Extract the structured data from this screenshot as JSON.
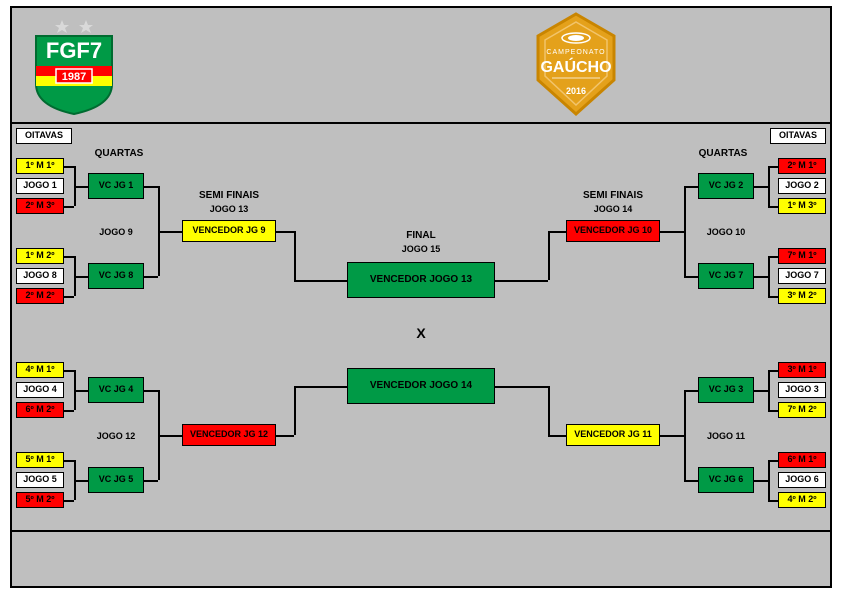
{
  "colors": {
    "bg": "#bfbfbf",
    "yellow": "#ffff00",
    "red": "#ff0000",
    "green": "#009a46",
    "white": "#ffffff",
    "black": "#000000",
    "redText": "#000000",
    "greenBorder": "#00b050"
  },
  "logo": {
    "text_top": "FGF7",
    "year": "1987",
    "star_color": "#d9d9d9"
  },
  "badge": {
    "line1": "CAMPEONATO",
    "line2": "GAÚCHO",
    "year": "2016",
    "fill": "#e4a11b",
    "border": "#c98500"
  },
  "columns": {
    "left_title": "OITAVAS",
    "right_title": "OITAVAS",
    "quartas": "QUARTAS",
    "semi": "SEMI FINAIS",
    "final": "FINAL"
  },
  "oitavasLeft": [
    {
      "seedTop": "1º M 1º",
      "game": "JOGO 1",
      "seedBot": "2º M 3º",
      "topColor": "yellow",
      "botColor": "red"
    },
    {
      "seedTop": "1º M 2º",
      "game": "JOGO 8",
      "seedBot": "2º M 2º",
      "topColor": "yellow",
      "botColor": "red"
    },
    {
      "seedTop": "4º M 1º",
      "game": "JOGO 4",
      "seedBot": "6º M 2º",
      "topColor": "yellow",
      "botColor": "red"
    },
    {
      "seedTop": "5º M 1º",
      "game": "JOGO 5",
      "seedBot": "5º M 2º",
      "topColor": "yellow",
      "botColor": "red"
    }
  ],
  "oitavasRight": [
    {
      "seedTop": "2º M 1º",
      "game": "JOGO 2",
      "seedBot": "1º M 3º",
      "topColor": "red",
      "botColor": "yellow"
    },
    {
      "seedTop": "7º M 1º",
      "game": "JOGO 7",
      "seedBot": "3º M 2º",
      "topColor": "red",
      "botColor": "yellow"
    },
    {
      "seedTop": "3º M 1º",
      "game": "JOGO 3",
      "seedBot": "7º M 2º",
      "topColor": "red",
      "botColor": "yellow"
    },
    {
      "seedTop": "6º M 1º",
      "game": "JOGO 6",
      "seedBot": "4º M 2º",
      "topColor": "red",
      "botColor": "yellow"
    }
  ],
  "quartasLeft": [
    {
      "label": "VC JG 1",
      "game": "JOGO 9"
    },
    {
      "label": "VC JG 8"
    },
    {
      "label": "VC JG 4",
      "game": "JOGO 12"
    },
    {
      "label": "VC JG 5"
    }
  ],
  "quartasRight": [
    {
      "label": "VC JG 2",
      "game": "JOGO 10"
    },
    {
      "label": "VC JG 7"
    },
    {
      "label": "VC JG 3",
      "game": "JOGO 11"
    },
    {
      "label": "VC JG 6"
    }
  ],
  "semiLeft": [
    {
      "label": "VENCEDOR JG 9",
      "game": "JOGO 13",
      "color": "yellow"
    },
    {
      "label": "VENCEDOR JG 12",
      "color": "red"
    }
  ],
  "semiRight": [
    {
      "label": "VENCEDOR JG 10",
      "game": "JOGO 14",
      "color": "red"
    },
    {
      "label": "VENCEDOR JG 11",
      "color": "yellow"
    }
  ],
  "final": {
    "game": "JOGO 15",
    "top": "VENCEDOR JOGO 13",
    "bot": "VENCEDOR JOGO 14",
    "vs": "X"
  },
  "dimensions": {
    "seedW": 48,
    "seedH": 16,
    "gameW": 48,
    "gameH": 16,
    "qfW": 56,
    "qfH": 26,
    "sfW": 94,
    "sfH": 22,
    "finBoxW": 148,
    "finBoxH": 36
  }
}
